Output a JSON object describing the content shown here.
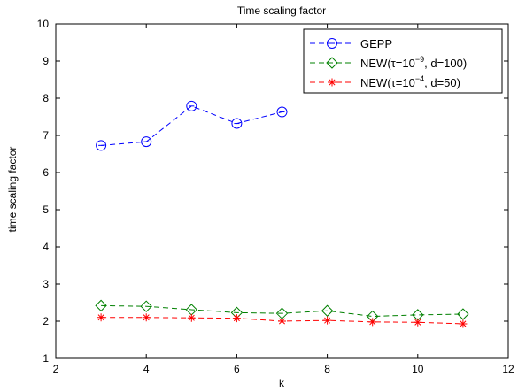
{
  "chart_data": {
    "type": "line",
    "title": "Time scaling factor",
    "xlabel": "k",
    "ylabel": "time scaling factor",
    "xlim": [
      2,
      12
    ],
    "ylim": [
      1,
      10
    ],
    "xticks": [
      "2",
      "4",
      "6",
      "8",
      "10",
      "12"
    ],
    "yticks": [
      "1",
      "2",
      "3",
      "4",
      "5",
      "6",
      "7",
      "8",
      "9",
      "10"
    ],
    "grid": false,
    "legend_position": "top-right",
    "series": [
      {
        "name": "GEPP",
        "legend": {
          "main": "GEPP",
          "sup": "",
          "tail": ""
        },
        "color": "#0000ff",
        "marker": "circle",
        "line": "dashed",
        "x": [
          3,
          4,
          5,
          6,
          7
        ],
        "y": [
          6.73,
          6.83,
          7.79,
          7.32,
          7.63
        ]
      },
      {
        "name": "NEW(τ=10−9, d=100)",
        "legend": {
          "main": "NEW(τ=10",
          "sup": "−9",
          "tail": ", d=100)"
        },
        "color": "#008000",
        "marker": "diamond",
        "line": "dashed",
        "x": [
          3,
          4,
          5,
          6,
          7,
          8,
          9,
          10,
          11
        ],
        "y": [
          2.42,
          2.4,
          2.31,
          2.23,
          2.21,
          2.28,
          2.13,
          2.17,
          2.19
        ]
      },
      {
        "name": "NEW(τ=10−4, d=50)",
        "legend": {
          "main": "NEW(τ=10",
          "sup": "−4",
          "tail": ", d=50)"
        },
        "color": "#ff0000",
        "marker": "star",
        "line": "dashed",
        "x": [
          3,
          4,
          5,
          6,
          7,
          8,
          9,
          10,
          11
        ],
        "y": [
          2.1,
          2.1,
          2.09,
          2.08,
          2.0,
          2.02,
          1.98,
          1.97,
          1.93
        ]
      }
    ]
  }
}
